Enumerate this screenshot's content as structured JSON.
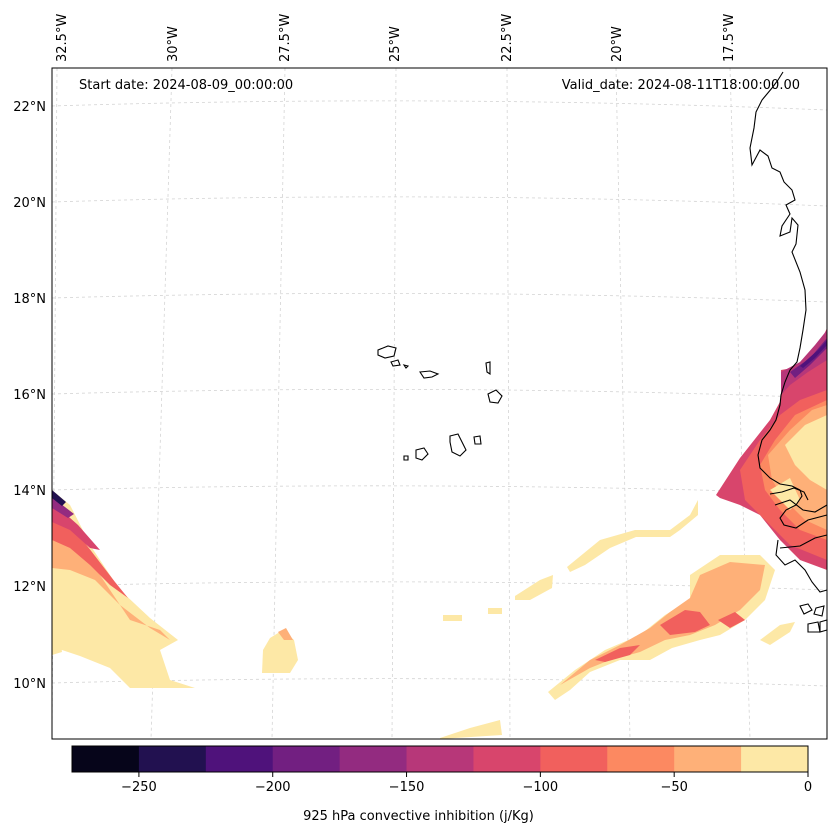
{
  "header": {
    "start_date": "Start date: 2024-08-09_00:00:00",
    "valid_date": "Valid_date: 2024-08-11T18:00:00.00"
  },
  "axes": {
    "lon_labels": [
      "32.5°W",
      "30°W",
      "27.5°W",
      "25°W",
      "22.5°W",
      "20°W",
      "17.5°W"
    ],
    "lat_labels": [
      "22°N",
      "20°N",
      "18°N",
      "16°N",
      "14°N",
      "12°N",
      "10°N"
    ]
  },
  "colorbar": {
    "label": "925 hPa convective inhibition (j/Kg)",
    "ticks": [
      "−250",
      "−200",
      "−150",
      "−100",
      "−50",
      "0"
    ],
    "levels": [
      -275,
      -250,
      -225,
      -200,
      -175,
      -150,
      -125,
      -100,
      -75,
      -50,
      -25,
      0
    ],
    "colors": [
      "#06051a",
      "#221150",
      "#4f127b",
      "#721f81",
      "#932b80",
      "#b73779",
      "#d8456c",
      "#f1605d",
      "#fc8961",
      "#feb078",
      "#fde8a6"
    ]
  },
  "map": {
    "coastline_color": "#000000",
    "gridline_color": "#cccccc",
    "features": [
      "Cabo Verde islands",
      "West African coast (Senegal, Gambia, Guinea-Bissau)"
    ]
  }
}
